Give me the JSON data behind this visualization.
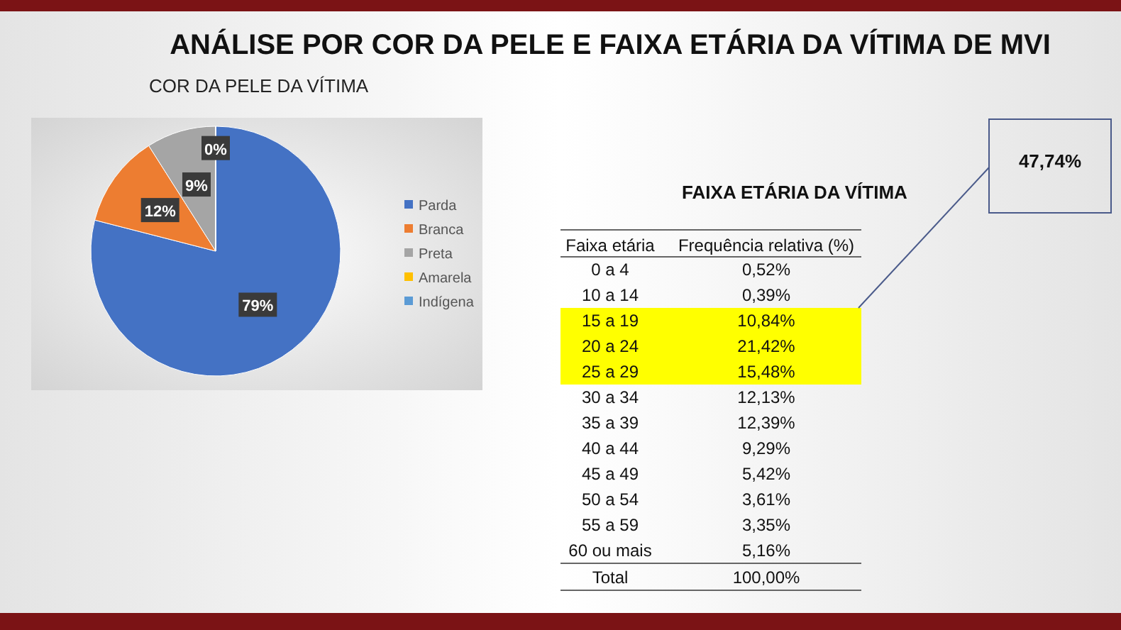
{
  "chart_data": [
    {
      "type": "pie",
      "title": "ANÁLISE POR COR DA PELE E FAIXA ETÁRIA DA VÍTIMA DE MVI",
      "subtitle": "COR DA PELE DA VÍTIMA",
      "categories": [
        "Parda",
        "Branca",
        "Preta",
        "Amarela",
        "Indígena"
      ],
      "values": [
        79,
        12,
        9,
        0,
        0
      ],
      "colors": [
        "#4472c4",
        "#ed7d31",
        "#a5a5a5",
        "#ffc000",
        "#5b9bd5"
      ],
      "value_labels": [
        "79%",
        "12%",
        "9%",
        "0%",
        null
      ],
      "legend": "right"
    },
    {
      "type": "other",
      "title": "FAIXA ETÁRIA DA VÍTIMA",
      "xlabel": "Faixa etária",
      "ylabel": "Frequência relativa (%)",
      "categories": [
        "0 a 4",
        "10 a 14",
        "15 a 19",
        "20 a 24",
        "25 a 29",
        "30 a 34",
        "35 a 39",
        "40 a 44",
        "45 a 49",
        "50 a 54",
        "55 a 59",
        "60 ou mais"
      ],
      "value_labels": [
        "0,52%",
        "0,39%",
        "10,84%",
        "21,42%",
        "15,48%",
        "12,13%",
        "12,39%",
        "9,29%",
        "5,42%",
        "3,61%",
        "3,35%",
        "5,16%"
      ],
      "colors": [
        null,
        null,
        "#ffff00",
        "#ffff00",
        "#ffff00",
        null,
        null,
        null,
        null,
        null,
        null,
        null
      ],
      "annotations": [
        "Total",
        "47,74%"
      ],
      "totals": [
        "100,00%"
      ]
    }
  ]
}
